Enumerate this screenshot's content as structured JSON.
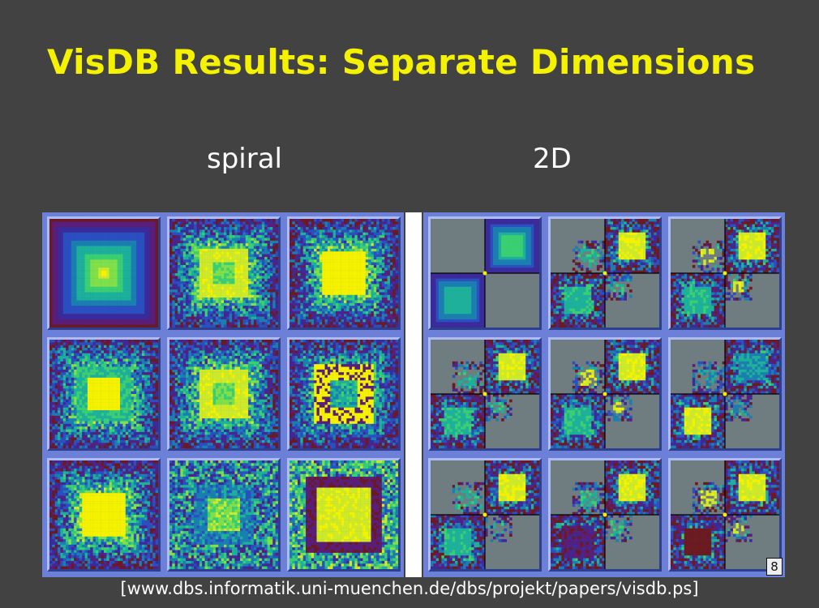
{
  "slide": {
    "title": "VisDB Results: Separate Dimensions",
    "page_number": "8",
    "reference": "[www.dbs.informatik.uni-muenchen.de/dbs/projekt/papers/visdb.ps]"
  },
  "panels": {
    "spiral": {
      "label": "spiral",
      "tiles": [
        {
          "kind": "spiral",
          "variant": "gradient"
        },
        {
          "kind": "spiral",
          "variant": "ring"
        },
        {
          "kind": "spiral",
          "variant": "solid"
        },
        {
          "kind": "spiral",
          "variant": "green"
        },
        {
          "kind": "spiral",
          "variant": "ring"
        },
        {
          "kind": "spiral",
          "variant": "darkring"
        },
        {
          "kind": "spiral",
          "variant": "solid"
        },
        {
          "kind": "spiral",
          "variant": "teal"
        },
        {
          "kind": "spiral",
          "variant": "brown"
        }
      ]
    },
    "twod": {
      "label": "2D",
      "tiles": [
        {
          "kind": "2d",
          "variant": "gradient"
        },
        {
          "kind": "2d",
          "variant": "a"
        },
        {
          "kind": "2d",
          "variant": "b"
        },
        {
          "kind": "2d",
          "variant": "a"
        },
        {
          "kind": "2d",
          "variant": "b"
        },
        {
          "kind": "2d",
          "variant": "c"
        },
        {
          "kind": "2d",
          "variant": "a"
        },
        {
          "kind": "2d",
          "variant": "d"
        },
        {
          "kind": "2d",
          "variant": "e"
        }
      ]
    }
  },
  "colors": {
    "background": "#424242",
    "title": "#f5f200",
    "frame": "#6c80d8",
    "tile_gray": "#6f7c80",
    "palette": [
      "#f5f200",
      "#cdea2a",
      "#7fe04a",
      "#3acf72",
      "#1db09a",
      "#1a7fb0",
      "#2a4fc0",
      "#3a2a9a",
      "#5a1e78",
      "#6a1a20"
    ]
  }
}
